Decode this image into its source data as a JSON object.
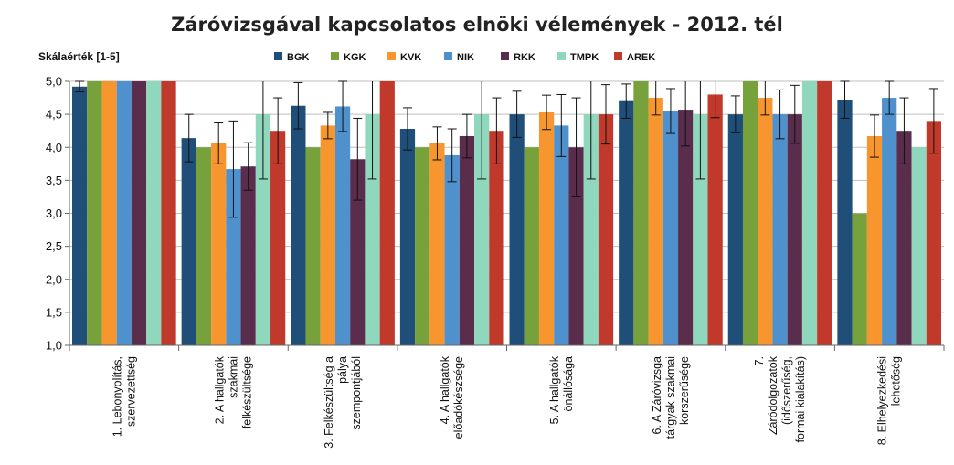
{
  "chart_data": {
    "type": "bar",
    "title": "Záróvizsgával kapcsolatos elnöki vélemények - 2012. tél",
    "ylabel": "Skálaérték [1-5]",
    "xlabel": "",
    "ylim": [
      1.0,
      5.0
    ],
    "ytick_labels": [
      "1,0",
      "1,5",
      "2,0",
      "2,5",
      "3,0",
      "3,5",
      "4,0",
      "4,5",
      "5,0"
    ],
    "ytick_values": [
      1.0,
      1.5,
      2.0,
      2.5,
      3.0,
      3.5,
      4.0,
      4.5,
      5.0
    ],
    "grid": true,
    "legend_position": "top",
    "categories": [
      [
        "1. Lebonyolítás,",
        "szervezettség"
      ],
      [
        "2. A hallgatók",
        "szakmai",
        "felkészültsége"
      ],
      [
        "3. Felkészültség a",
        "pálya",
        "szempontjából"
      ],
      [
        "4. A hallgatók",
        "előadókészsége"
      ],
      [
        "5. A hallgatók",
        "önállósága"
      ],
      [
        "6. A Záróvizsga",
        "tárgyak szakmai",
        "korszerűsége"
      ],
      [
        "7.",
        "Záródolgozatok",
        "(időszerűség,",
        "formai kialakítás)"
      ],
      [
        "8. Elhelyezkedési",
        "lehetőség"
      ]
    ],
    "series": [
      {
        "name": "BGK",
        "color": "#1f4e79",
        "values": [
          4.92,
          4.14,
          4.63,
          4.28,
          4.5,
          4.7,
          4.5,
          4.72
        ],
        "errors": [
          0.08,
          0.36,
          0.35,
          0.32,
          0.35,
          0.26,
          0.28,
          0.28
        ]
      },
      {
        "name": "KGK",
        "color": "#77a13a",
        "values": [
          5.0,
          4.0,
          4.0,
          4.0,
          4.0,
          5.0,
          5.0,
          3.0
        ],
        "errors": [
          0,
          0,
          0,
          0,
          0,
          0,
          0,
          0
        ]
      },
      {
        "name": "KVK",
        "color": "#f7962f",
        "values": [
          5.0,
          4.06,
          4.33,
          4.06,
          4.53,
          4.75,
          4.75,
          4.17
        ],
        "errors": [
          0,
          0.31,
          0.2,
          0.25,
          0.26,
          0.26,
          0.26,
          0.32
        ]
      },
      {
        "name": "NIK",
        "color": "#4f91cd",
        "values": [
          5.0,
          3.67,
          4.62,
          3.88,
          4.33,
          4.55,
          4.5,
          4.75
        ],
        "errors": [
          0,
          0.73,
          0.38,
          0.4,
          0.47,
          0.34,
          0.37,
          0.25
        ]
      },
      {
        "name": "RKK",
        "color": "#5a2d4c",
        "values": [
          5.0,
          3.71,
          3.82,
          4.17,
          4.0,
          4.57,
          4.5,
          4.25
        ],
        "errors": [
          0,
          0.36,
          0.62,
          0.33,
          0.75,
          0.55,
          0.44,
          0.5
        ]
      },
      {
        "name": "TMPK",
        "color": "#8fd8bd",
        "values": [
          5.0,
          4.5,
          4.5,
          4.5,
          4.5,
          4.5,
          5.0,
          4.0
        ],
        "errors": [
          0,
          0.98,
          0.98,
          0.98,
          0.98,
          0.98,
          0,
          0
        ]
      },
      {
        "name": "AREK",
        "color": "#c0392b",
        "values": [
          5.0,
          4.25,
          5.0,
          4.25,
          4.5,
          4.8,
          5.0,
          4.4
        ],
        "errors": [
          0,
          0.5,
          0,
          0.5,
          0.45,
          0.35,
          0,
          0.49
        ]
      }
    ]
  }
}
